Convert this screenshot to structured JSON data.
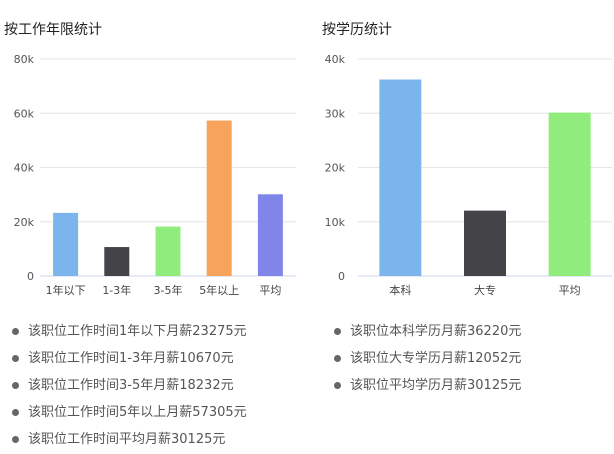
{
  "chart_data": [
    {
      "type": "bar",
      "title": "按工作年限统计",
      "categories": [
        "1年以下",
        "1-3年",
        "3-5年",
        "5年以上",
        "平均"
      ],
      "values": [
        23275,
        10670,
        18232,
        57305,
        30125
      ],
      "colors": [
        "#7cb5ec",
        "#434348",
        "#90ed7d",
        "#f7a35c",
        "#8085e9"
      ],
      "ylim": [
        0,
        80000
      ],
      "yticks": [
        0,
        20000,
        40000,
        60000,
        80000
      ],
      "ytick_labels": [
        "0",
        "20k",
        "40k",
        "60k",
        "80k"
      ],
      "grid": true,
      "notes": [
        "该职位工作时间1年以下月薪23275元",
        "该职位工作时间1-3年月薪10670元",
        "该职位工作时间3-5年月薪18232元",
        "该职位工作时间5年以上月薪57305元",
        "该职位工作时间平均月薪30125元"
      ]
    },
    {
      "type": "bar",
      "title": "按学历统计",
      "categories": [
        "本科",
        "大专",
        "平均"
      ],
      "values": [
        36220,
        12052,
        30125
      ],
      "colors": [
        "#7cb5ec",
        "#434348",
        "#90ed7d"
      ],
      "ylim": [
        0,
        40000
      ],
      "yticks": [
        0,
        10000,
        20000,
        30000,
        40000
      ],
      "ytick_labels": [
        "0",
        "10k",
        "20k",
        "30k",
        "40k"
      ],
      "grid": true,
      "notes": [
        "该职位本科学历月薪36220元",
        "该职位大专学历月薪12052元",
        "该职位平均学历月薪30125元"
      ]
    }
  ]
}
